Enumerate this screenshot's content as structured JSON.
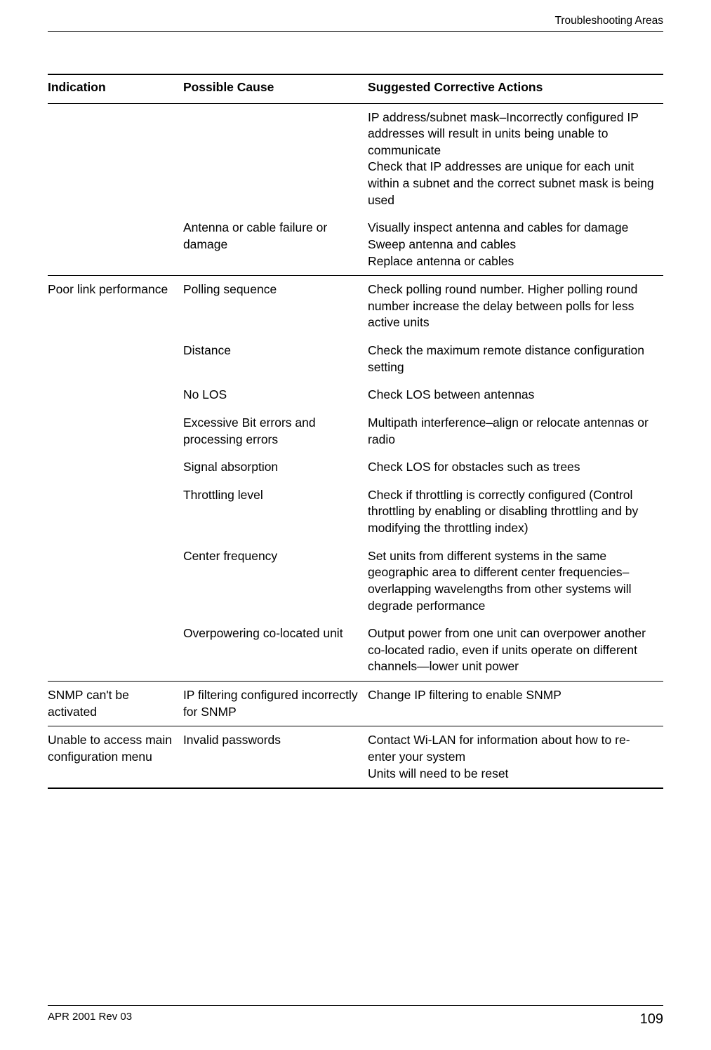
{
  "header": {
    "section": "Troubleshooting Areas"
  },
  "table": {
    "columns": {
      "c1": "Indication",
      "c2": "Possible Cause",
      "c3": "Suggested Corrective Actions"
    },
    "rows": [
      {
        "indication": "",
        "cause": "",
        "action1": "IP address/subnet mask–Incorrectly configured IP addresses will result in units being unable to communicate",
        "action2": "Check that IP addresses are unique for each unit within a subnet and the correct subnet mask is being used",
        "sep": false
      },
      {
        "indication": "",
        "cause": "Antenna or cable failure or damage",
        "action1": "Visually inspect antenna and cables for damage",
        "action2": "Sweep antenna and cables",
        "action3": "Replace antenna or cables",
        "sep": true
      },
      {
        "indication": "Poor link performance",
        "cause": "Polling sequence",
        "action1": "Check polling round number. Higher polling round number increase the delay between polls for less active units",
        "sep": false
      },
      {
        "indication": "",
        "cause": "Distance",
        "action1": "Check the maximum remote distance configuration setting",
        "sep": false
      },
      {
        "indication": "",
        "cause": "No LOS",
        "action1": "Check LOS between antennas",
        "sep": false
      },
      {
        "indication": "",
        "cause": "Excessive Bit errors and processing errors",
        "action1": "Multipath interference–align or relocate antennas or radio",
        "sep": false
      },
      {
        "indication": "",
        "cause": "Signal absorption",
        "action1": "Check LOS for obstacles such as trees",
        "sep": false
      },
      {
        "indication": "",
        "cause": "Throttling level",
        "action1": "Check if throttling is correctly configured (Control throttling by enabling or disabling throttling and by modifying the throttling index)",
        "sep": false
      },
      {
        "indication": "",
        "cause": "Center frequency",
        "action1": "Set units from different systems in the same geographic area to different center frequencies–overlapping wavelengths from other systems will degrade performance",
        "sep": false
      },
      {
        "indication": "",
        "cause": "Overpowering co-located unit",
        "action1": "Output power from one unit can overpower another co-located radio, even if units operate on different channels—lower unit power",
        "sep": true
      },
      {
        "indication": "SNMP can't be activated",
        "cause": "IP filtering configured incorrectly for SNMP",
        "action1": "Change IP filtering to enable SNMP",
        "sep": true
      },
      {
        "indication": "Unable to access main configuration menu",
        "cause": "Invalid passwords",
        "action1": "Contact Wi-LAN for information about how to re-enter your system",
        "action2": "Units will need to be reset",
        "sep": true,
        "thick": true
      }
    ]
  },
  "footer": {
    "rev": "APR 2001 Rev 03",
    "page": "109"
  }
}
